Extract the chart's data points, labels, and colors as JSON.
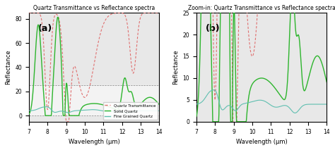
{
  "title_a": "Quartz Transmittance vs Reflectance spectra",
  "title_b": "Zoom-in: Quartz Transmittance vs Reflectance spectra",
  "xlabel": "Wavelength (μm)",
  "ylabel": "Reflectance",
  "label_a": "(a)",
  "label_b": "(b)",
  "xlim": [
    7,
    14
  ],
  "ylim_a": [
    -5,
    85
  ],
  "ylim_b": [
    0,
    25
  ],
  "yticks_a": [
    0,
    20,
    40,
    60,
    80
  ],
  "yticks_b": [
    0,
    5,
    10,
    15,
    20,
    25
  ],
  "xticks": [
    7,
    8,
    9,
    10,
    11,
    12,
    13,
    14
  ],
  "hband_y1": 0,
  "hband_y2": 25,
  "hline_y": 0,
  "bg_color": "#e8e8e8",
  "colors": {
    "transmittance": "#e07070",
    "solid": "#2db52d",
    "fine": "#5fbfb0"
  },
  "legend_labels": [
    "Quartz Transmittance",
    "Solid Quartz",
    "Fine Grained Quartz"
  ]
}
